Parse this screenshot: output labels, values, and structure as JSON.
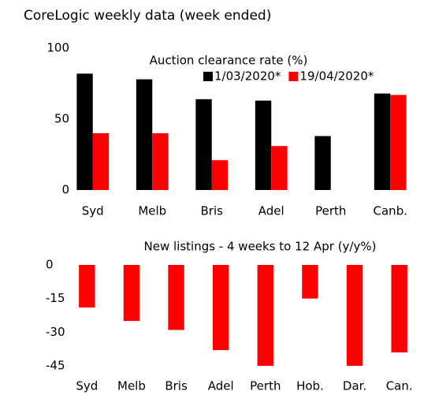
{
  "title": "CoreLogic weekly data (week ended)",
  "chart_data": [
    {
      "type": "bar",
      "title": "Auction clearance rate (%)",
      "categories": [
        "Syd",
        "Melb",
        "Bris",
        "Adel",
        "Perth",
        "Canb."
      ],
      "series": [
        {
          "name": "1/03/2020*",
          "color": "#000000",
          "values": [
            82,
            78,
            64,
            63,
            38,
            68
          ]
        },
        {
          "name": "19/04/2020*",
          "color": "#ff0000",
          "values": [
            40,
            40,
            21,
            31,
            null,
            67
          ]
        }
      ],
      "ylim": [
        0,
        100
      ],
      "yticks": [
        0,
        50,
        100
      ],
      "grid": false,
      "legend": "top-right"
    },
    {
      "type": "bar",
      "title": "New listings -  4 weeks to 12 Apr (y/y%)",
      "categories": [
        "Syd",
        "Melb",
        "Bris",
        "Adel",
        "Perth",
        "Hob.",
        "Dar.",
        "Can."
      ],
      "series": [
        {
          "name": null,
          "color": "#ff0000",
          "values": [
            -19,
            -25,
            -29,
            -38,
            -45,
            -15,
            -45,
            -39
          ]
        }
      ],
      "ylim": [
        -45,
        0
      ],
      "yticks": [
        0,
        -15,
        -30,
        -45
      ],
      "grid": false
    }
  ]
}
